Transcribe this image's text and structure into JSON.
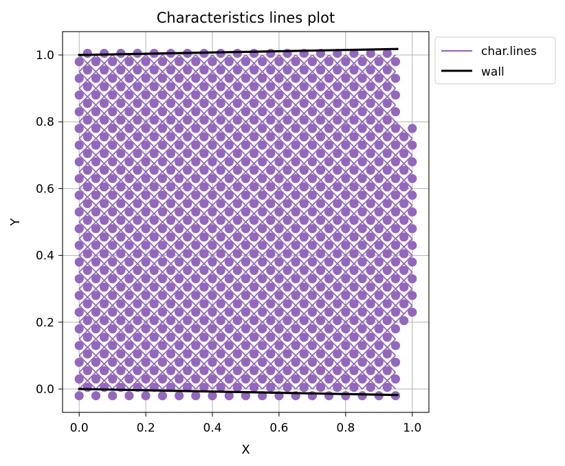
{
  "chart_data": {
    "type": "line",
    "title": "Characteristics lines plot",
    "xlabel": "X",
    "ylabel": "Y",
    "xlim": [
      -0.05,
      1.05
    ],
    "ylim": [
      -0.07,
      1.07
    ],
    "xticks": [
      0.0,
      0.2,
      0.4,
      0.6,
      0.8,
      1.0
    ],
    "xtick_labels": [
      "0.0",
      "0.2",
      "0.4",
      "0.6",
      "0.8",
      "1.0"
    ],
    "yticks": [
      0.0,
      0.2,
      0.4,
      0.6,
      0.8,
      1.0
    ],
    "ytick_labels": [
      "0.0",
      "0.2",
      "0.4",
      "0.6",
      "0.8",
      "1.0"
    ],
    "grid": true,
    "legend_position": "outside-upper-right",
    "series": [
      {
        "name": "char.lines",
        "color": "#9467bd",
        "marker": "circle",
        "kind": "characteristic-mesh",
        "spacing": 0.05,
        "x_range": [
          0.0,
          0.96
        ],
        "y_range": [
          -0.02,
          1.02
        ],
        "exit_boundary": {
          "x": [
            0.955,
            0.955,
            1.0,
            1.0,
            0.955,
            0.955
          ],
          "y": [
            -0.02,
            0.18,
            0.22,
            0.78,
            0.82,
            1.02
          ]
        },
        "reflection_kinks": [
          {
            "x": 0.6,
            "y": 0.62
          },
          {
            "x": 0.6,
            "y": 0.38
          }
        ]
      },
      {
        "name": "wall",
        "color": "#000000",
        "segments": [
          {
            "x": [
              0.0,
              0.955
            ],
            "y": [
              1.0,
              1.018
            ]
          },
          {
            "x": [
              0.0,
              0.955
            ],
            "y": [
              0.0,
              -0.018
            ]
          }
        ]
      }
    ]
  }
}
